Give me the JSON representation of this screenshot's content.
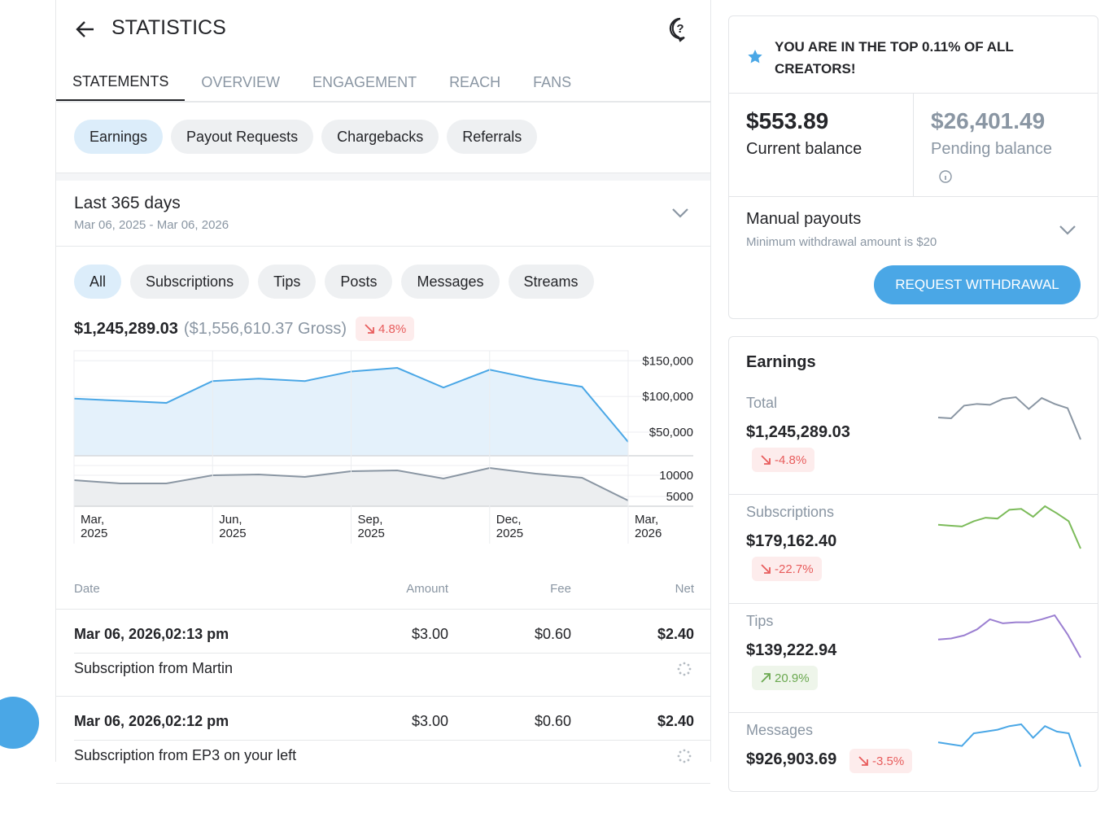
{
  "header": {
    "title": "STATISTICS"
  },
  "tabs": [
    "STATEMENTS",
    "OVERVIEW",
    "ENGAGEMENT",
    "REACH",
    "FANS"
  ],
  "statement_types": [
    "Earnings",
    "Payout Requests",
    "Chargebacks",
    "Referrals"
  ],
  "period": {
    "title": "Last 365 days",
    "range": "Mar 06, 2025 - Mar 06, 2026"
  },
  "sources": [
    "All",
    "Subscriptions",
    "Tips",
    "Posts",
    "Messages",
    "Streams"
  ],
  "summary": {
    "net": "$1,245,289.03",
    "gross": "($1,556,610.37 Gross)",
    "change": "4.8%",
    "direction": "down"
  },
  "chart_data": [
    {
      "type": "area",
      "x": [
        0,
        1,
        2,
        3,
        4,
        5,
        6,
        7,
        8,
        9,
        10,
        11,
        12
      ],
      "values": [
        97000,
        94000,
        91000,
        121600,
        125000,
        121600,
        135000,
        140000,
        112500,
        137500,
        124000,
        113600,
        36400
      ],
      "xlim": [
        0,
        12
      ],
      "ylim": [
        17000,
        164000
      ],
      "yticks": [
        {
          "value": 150000,
          "label": "$150,000"
        },
        {
          "value": 100000,
          "label": "$100,000"
        },
        {
          "value": 50000,
          "label": "$50,000"
        }
      ],
      "color": "#4aa7e6",
      "fill": "#e4f1fb",
      "grid": true
    },
    {
      "type": "area",
      "x": [
        0,
        1,
        2,
        3,
        4,
        5,
        6,
        7,
        8,
        9,
        10,
        11,
        12
      ],
      "values": [
        8850,
        8080,
        8080,
        10000,
        10190,
        9620,
        10960,
        11150,
        9230,
        11730,
        10380,
        9420,
        4040
      ],
      "xlim": [
        0,
        12
      ],
      "ylim": [
        2700,
        12300
      ],
      "yticks": [
        10000,
        5000
      ],
      "xticks": [
        {
          "value": 0,
          "label": "Mar, 2025"
        },
        {
          "value": 3,
          "label": "Jun, 2025"
        },
        {
          "value": 6,
          "label": "Sep, 2025"
        },
        {
          "value": 9,
          "label": "Dec, 2025"
        },
        {
          "value": 12,
          "label": "Mar, 2026"
        }
      ],
      "color": "#8a96a3",
      "fill": "#eceef0",
      "grid": true
    }
  ],
  "table": {
    "columns": [
      "Date",
      "Amount",
      "Fee",
      "Net"
    ],
    "rows": [
      {
        "date": "Mar 06, 2026,02:13 pm",
        "amount": "$3.00",
        "fee": "$0.60",
        "net": "$2.40",
        "description": "Subscription from Martin"
      },
      {
        "date": "Mar 06, 2026,02:12 pm",
        "amount": "$3.00",
        "fee": "$0.60",
        "net": "$2.40",
        "description": "Subscription from EP3 on your left"
      }
    ]
  },
  "notice": "YOU ARE IN THE TOP 0.11% OF ALL CREATORS!",
  "balances": [
    {
      "amount": "$553.89",
      "label": "Current balance"
    },
    {
      "amount": "$26,401.49",
      "label": "Pending balance"
    }
  ],
  "payouts": {
    "title": "Manual payouts",
    "note": "Minimum withdrawal amount is $20",
    "button": "REQUEST WITHDRAWAL"
  },
  "earnings": {
    "title": "Earnings",
    "items": [
      {
        "name": "Total",
        "amount": "$1,245,289.03",
        "change": "-4.8%",
        "direction": "down",
        "color": "#8a96a3",
        "values": [
          96,
          95,
          110,
          112,
          111,
          118,
          120,
          106,
          119,
          112,
          107,
          70
        ]
      },
      {
        "name": "Subscriptions",
        "amount": "$179,162.40",
        "change": "-22.7%",
        "direction": "down",
        "color": "#7cbb5a",
        "values": [
          27,
          26,
          25,
          31,
          35,
          34,
          44,
          45,
          36,
          48,
          40,
          31,
          0
        ]
      },
      {
        "name": "Tips",
        "amount": "$139,222.94",
        "change": "20.9%",
        "direction": "up",
        "color": "#9b7fd1",
        "values": [
          18,
          19,
          22,
          28,
          38,
          34,
          35,
          35,
          38,
          42,
          23,
          0
        ]
      },
      {
        "name": "Messages",
        "amount": "$926,903.69",
        "change": "-3.5%",
        "direction": "down",
        "color": "#4aa7e6",
        "values": [
          27,
          25,
          23,
          37,
          39,
          41,
          45,
          47,
          32,
          45,
          39,
          37,
          0
        ]
      }
    ]
  }
}
